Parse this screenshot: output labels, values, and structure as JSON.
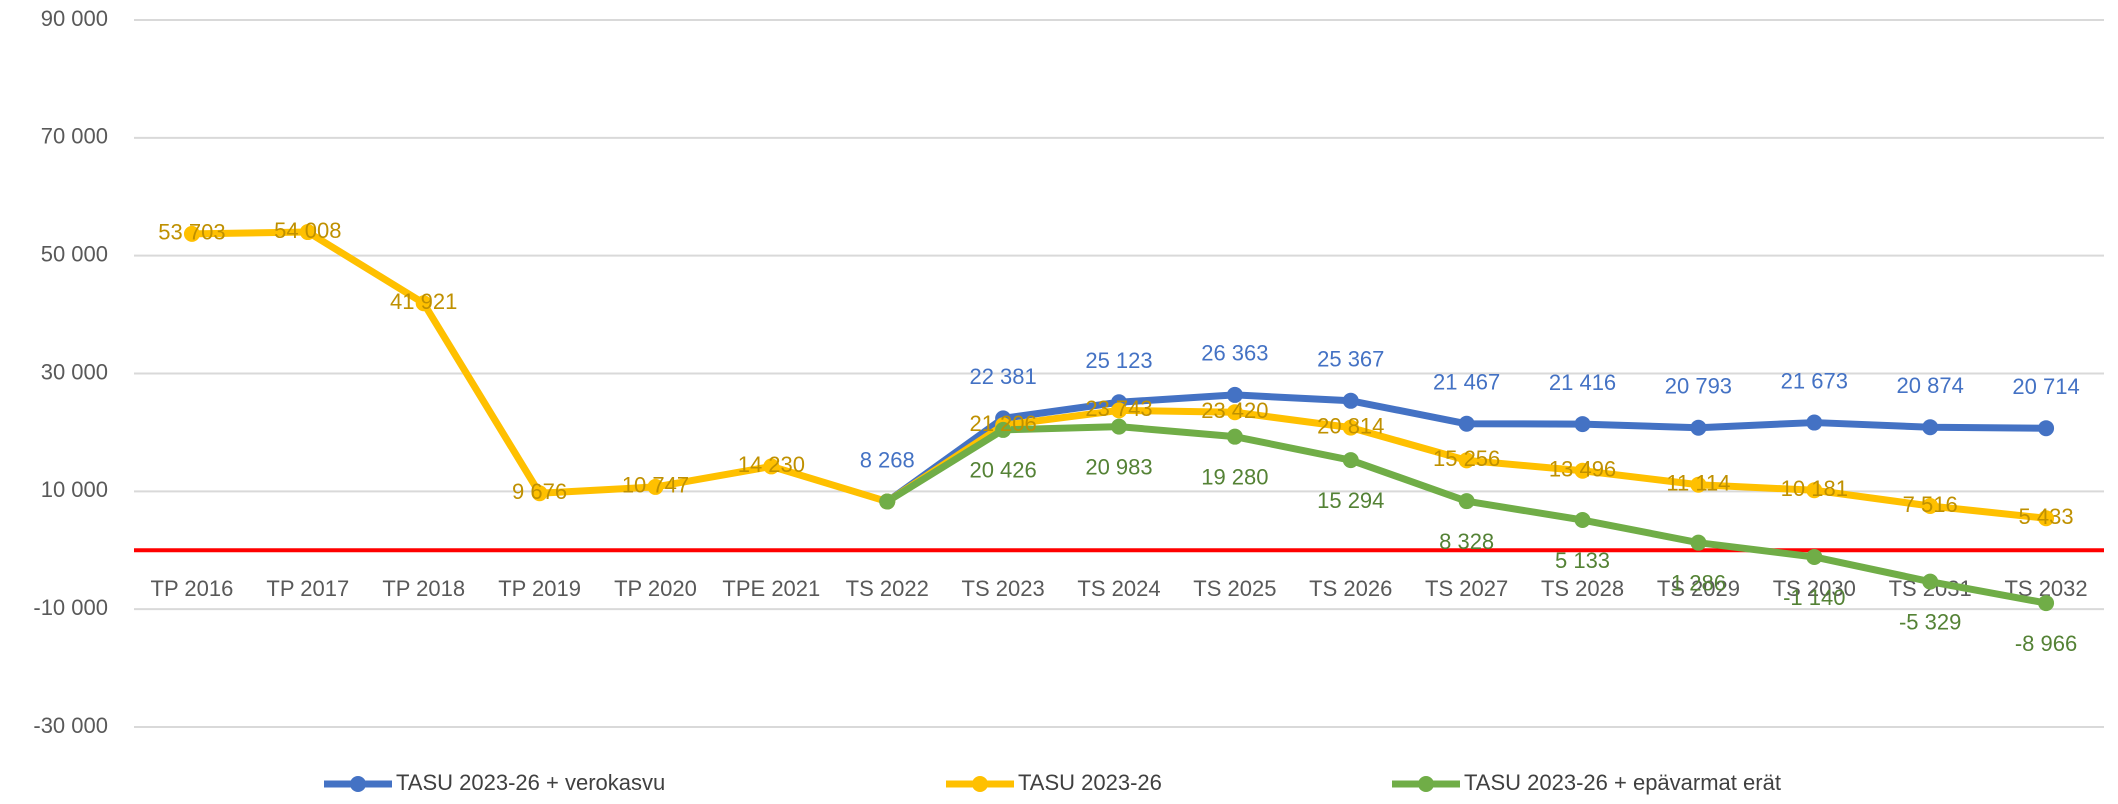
{
  "chart_data": {
    "type": "line",
    "categories": [
      "TP 2016",
      "TP 2017",
      "TP 2018",
      "TP 2019",
      "TP 2020",
      "TPE 2021",
      "TS 2022",
      "TS 2023",
      "TS 2024",
      "TS 2025",
      "TS 2026",
      "TS 2027",
      "TS 2028",
      "TS 2029",
      "TS 2030",
      "TS 2031",
      "TS 2032"
    ],
    "series": [
      {
        "name": "TASU 2023-26 + verokasvu",
        "color": "#4472c4",
        "label_color": "#4472c4",
        "label_position": "above",
        "values": [
          null,
          null,
          null,
          null,
          null,
          null,
          8268,
          22381,
          25123,
          26363,
          25367,
          21467,
          21416,
          20793,
          21673,
          20874,
          20714
        ],
        "value_labels": [
          null,
          null,
          null,
          null,
          null,
          null,
          "8 268",
          "22 381",
          "25 123",
          "26 363",
          "25 367",
          "21 467",
          "21 416",
          "20 793",
          "21 673",
          "20 874",
          "20 714"
        ]
      },
      {
        "name": "TASU 2023-26",
        "color": "#ffc000",
        "label_color": "#bf9000",
        "label_position": "center",
        "values": [
          53703,
          54008,
          41921,
          9676,
          10747,
          14230,
          8268,
          21206,
          23743,
          23420,
          20814,
          15256,
          13496,
          11114,
          10181,
          7516,
          5433
        ],
        "value_labels": [
          "53 703",
          "54 008",
          "41 921",
          "9 676",
          "10 747",
          "14 230",
          null,
          "21 206",
          "23 743",
          "23 420",
          "20 814",
          "15 256",
          "13 496",
          "11 114",
          "10 181",
          "7 516",
          "5 433"
        ]
      },
      {
        "name": "TASU 2023-26 + epävarmat erät",
        "color": "#70ad47",
        "label_color": "#548235",
        "label_position": "below",
        "values": [
          null,
          null,
          null,
          null,
          null,
          null,
          8268,
          20426,
          20983,
          19280,
          15294,
          8328,
          5133,
          1286,
          -1140,
          -5329,
          -8966
        ],
        "value_labels": [
          null,
          null,
          null,
          null,
          null,
          null,
          null,
          "20 426",
          "20 983",
          "19 280",
          "15 294",
          "8 328",
          "5 133",
          "1 286",
          "-1 140",
          "-5 329",
          "-8 966"
        ]
      }
    ],
    "ylim": [
      -30000,
      90000
    ],
    "yticks": [
      {
        "value": -30000,
        "label": "-30 000"
      },
      {
        "value": -10000,
        "label": "-10 000"
      },
      {
        "value": 10000,
        "label": "10 000"
      },
      {
        "value": 30000,
        "label": "30 000"
      },
      {
        "value": 50000,
        "label": "50 000"
      },
      {
        "value": 70000,
        "label": "70 000"
      },
      {
        "value": 90000,
        "label": "90 000"
      }
    ],
    "grid": true,
    "zero_line_color": "#ff0000",
    "legend": "bottom"
  }
}
